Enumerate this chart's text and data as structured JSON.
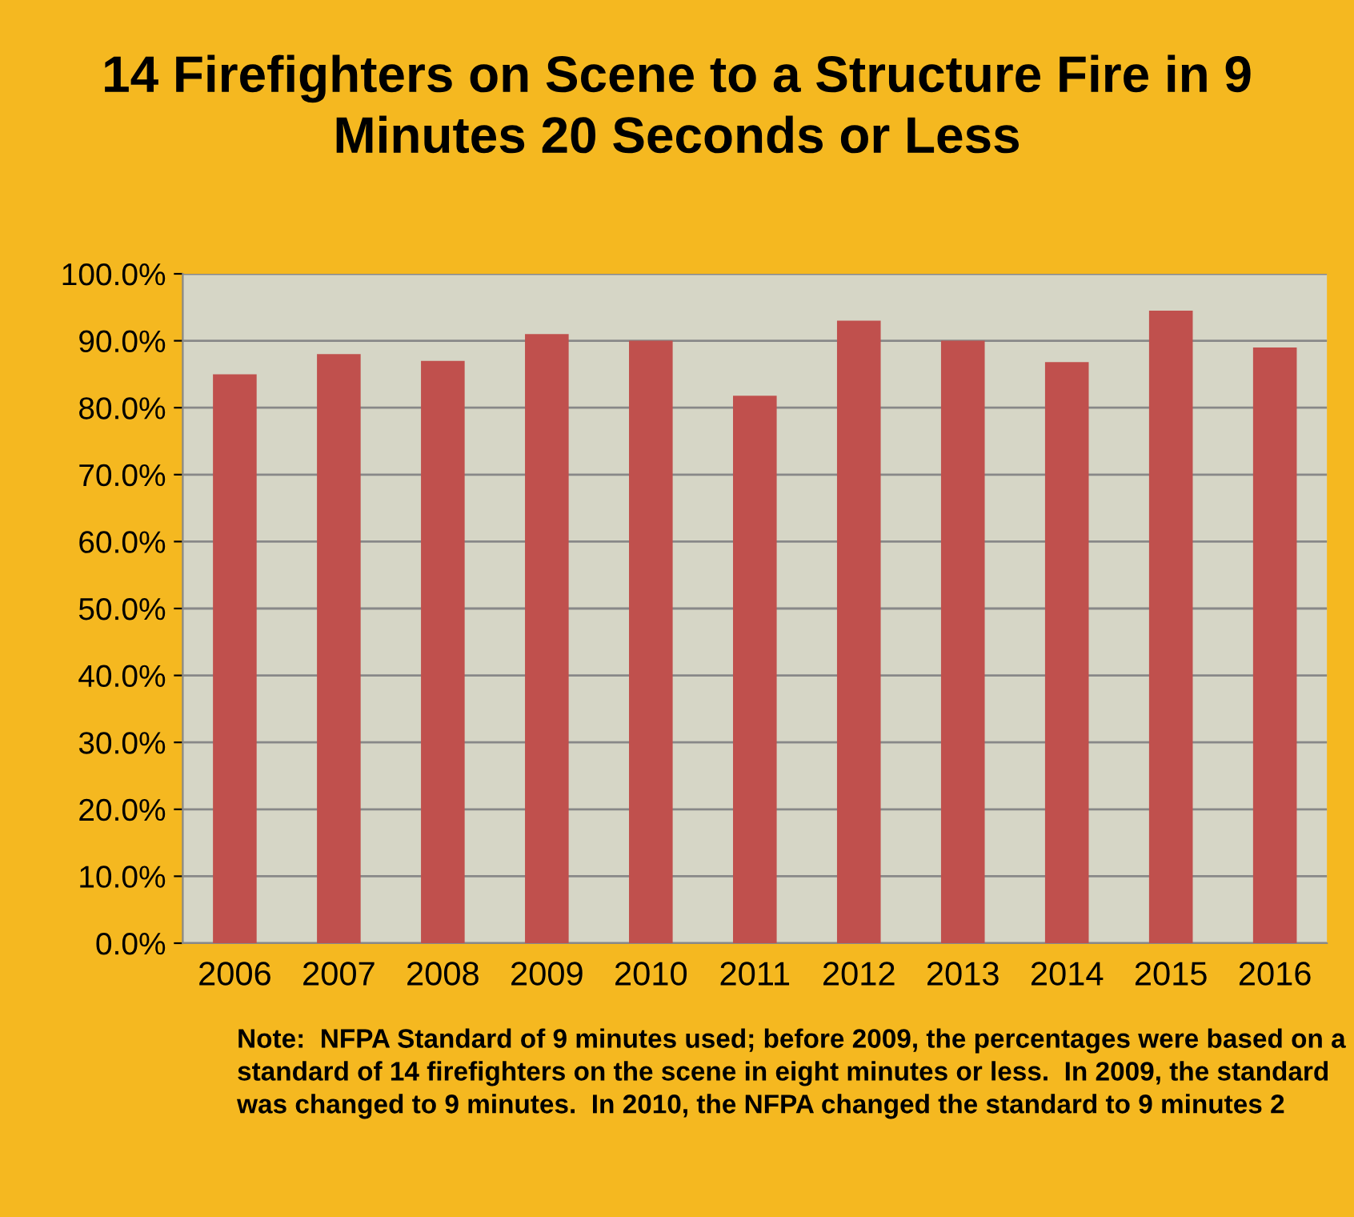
{
  "chart_data": {
    "type": "bar",
    "title": "14 Firefighters on Scene to a Structure Fire in 9 Minutes 20 Seconds or Less",
    "categories": [
      "2006",
      "2007",
      "2008",
      "2009",
      "2010",
      "2011",
      "2012",
      "2013",
      "2014",
      "2015",
      "2016"
    ],
    "values": [
      85,
      88,
      87,
      91,
      90,
      81.8,
      93,
      90,
      86.8,
      94.5,
      89
    ],
    "color": "#c0504d",
    "ylim": [
      0,
      100
    ],
    "yticks": [
      {
        "value": 0,
        "label": "0.0%"
      },
      {
        "value": 10,
        "label": "10.0%"
      },
      {
        "value": 20,
        "label": "20.0%"
      },
      {
        "value": 30,
        "label": "30.0%"
      },
      {
        "value": 40,
        "label": "40.0%"
      },
      {
        "value": 50,
        "label": "50.0%"
      },
      {
        "value": 60,
        "label": "60.0%"
      },
      {
        "value": 70,
        "label": "70.0%"
      },
      {
        "value": 80,
        "label": "80.0%"
      },
      {
        "value": 90,
        "label": "90.0%"
      },
      {
        "value": 100,
        "label": "100.0%"
      }
    ],
    "grid": "y",
    "annotations": [
      "Note:  NFPA Standard of 9 minutes used; before 2009, the percentages were based on a standard of 14 firefighters on the scene in eight minutes or less.  In 2009, the standard was changed to 9 minutes.  In 2010, the NFPA changed the standard to 9 minutes 2"
    ]
  }
}
